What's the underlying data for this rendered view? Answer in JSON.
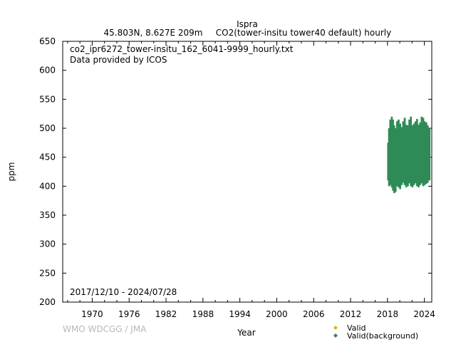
{
  "header": {
    "station": "Ispra",
    "location": "45.803N, 8.627E 209m",
    "parameter": "CO2(tower-insitu tower40 default) hourly"
  },
  "chart_data": {
    "type": "scatter",
    "filename": "co2_ipr6272_tower-insitu_162_6041-9999_hourly.txt",
    "provider": "Data provided by ICOS",
    "period": "2017/12/10 - 2024/07/28",
    "xlabel": "Year",
    "ylabel": "ppm",
    "xlim": [
      1965.2,
      2025.2
    ],
    "ylim": [
      200,
      650
    ],
    "x_ticks": [
      1970,
      1976,
      1982,
      1988,
      1994,
      2000,
      2006,
      2012,
      2018,
      2024
    ],
    "y_ticks": [
      200,
      250,
      300,
      350,
      400,
      450,
      500,
      550,
      600,
      650
    ],
    "series": [
      {
        "name": "Valid",
        "color": "#e6b400",
        "marker": "diamond",
        "values": []
      },
      {
        "name": "Valid(background)",
        "color": "#2e8b57",
        "marker": "diamond",
        "band": [
          [
            2017.95,
            410,
            475
          ],
          [
            2018.1,
            400,
            500
          ],
          [
            2018.3,
            402,
            515
          ],
          [
            2018.55,
            398,
            520
          ],
          [
            2018.75,
            392,
            515
          ],
          [
            2018.95,
            388,
            505
          ],
          [
            2019.15,
            390,
            500
          ],
          [
            2019.4,
            400,
            512
          ],
          [
            2019.65,
            398,
            515
          ],
          [
            2019.9,
            395,
            508
          ],
          [
            2020.15,
            402,
            502
          ],
          [
            2020.4,
            406,
            512
          ],
          [
            2020.65,
            402,
            518
          ],
          [
            2020.9,
            398,
            506
          ],
          [
            2021.15,
            400,
            505
          ],
          [
            2021.4,
            405,
            515
          ],
          [
            2021.65,
            400,
            520
          ],
          [
            2021.9,
            398,
            505
          ],
          [
            2022.15,
            402,
            508
          ],
          [
            2022.4,
            405,
            512
          ],
          [
            2022.65,
            400,
            516
          ],
          [
            2022.9,
            398,
            506
          ],
          [
            2023.15,
            402,
            510
          ],
          [
            2023.4,
            405,
            520
          ],
          [
            2023.65,
            400,
            518
          ],
          [
            2023.9,
            402,
            512
          ],
          [
            2024.15,
            404,
            510
          ],
          [
            2024.4,
            406,
            505
          ],
          [
            2024.57,
            410,
            500
          ]
        ]
      }
    ]
  },
  "footer": {
    "credit": "WMO WDCGG / JMA"
  }
}
